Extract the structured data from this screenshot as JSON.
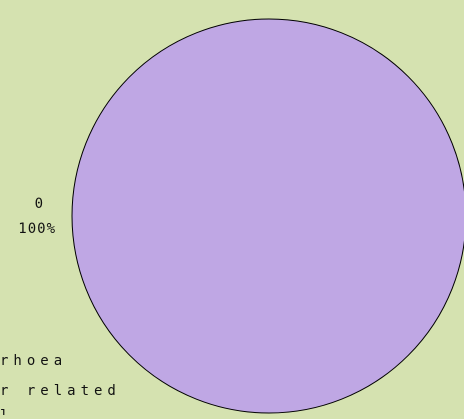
{
  "chart_data": {
    "type": "pie",
    "background_color": "#d5e2b0",
    "slices": [
      {
        "label": "0",
        "value": 0,
        "percent_label": "100%",
        "color": "#bfa7e4"
      }
    ],
    "legend_lines": [
      "rhoea",
      "r related",
      "l"
    ]
  }
}
